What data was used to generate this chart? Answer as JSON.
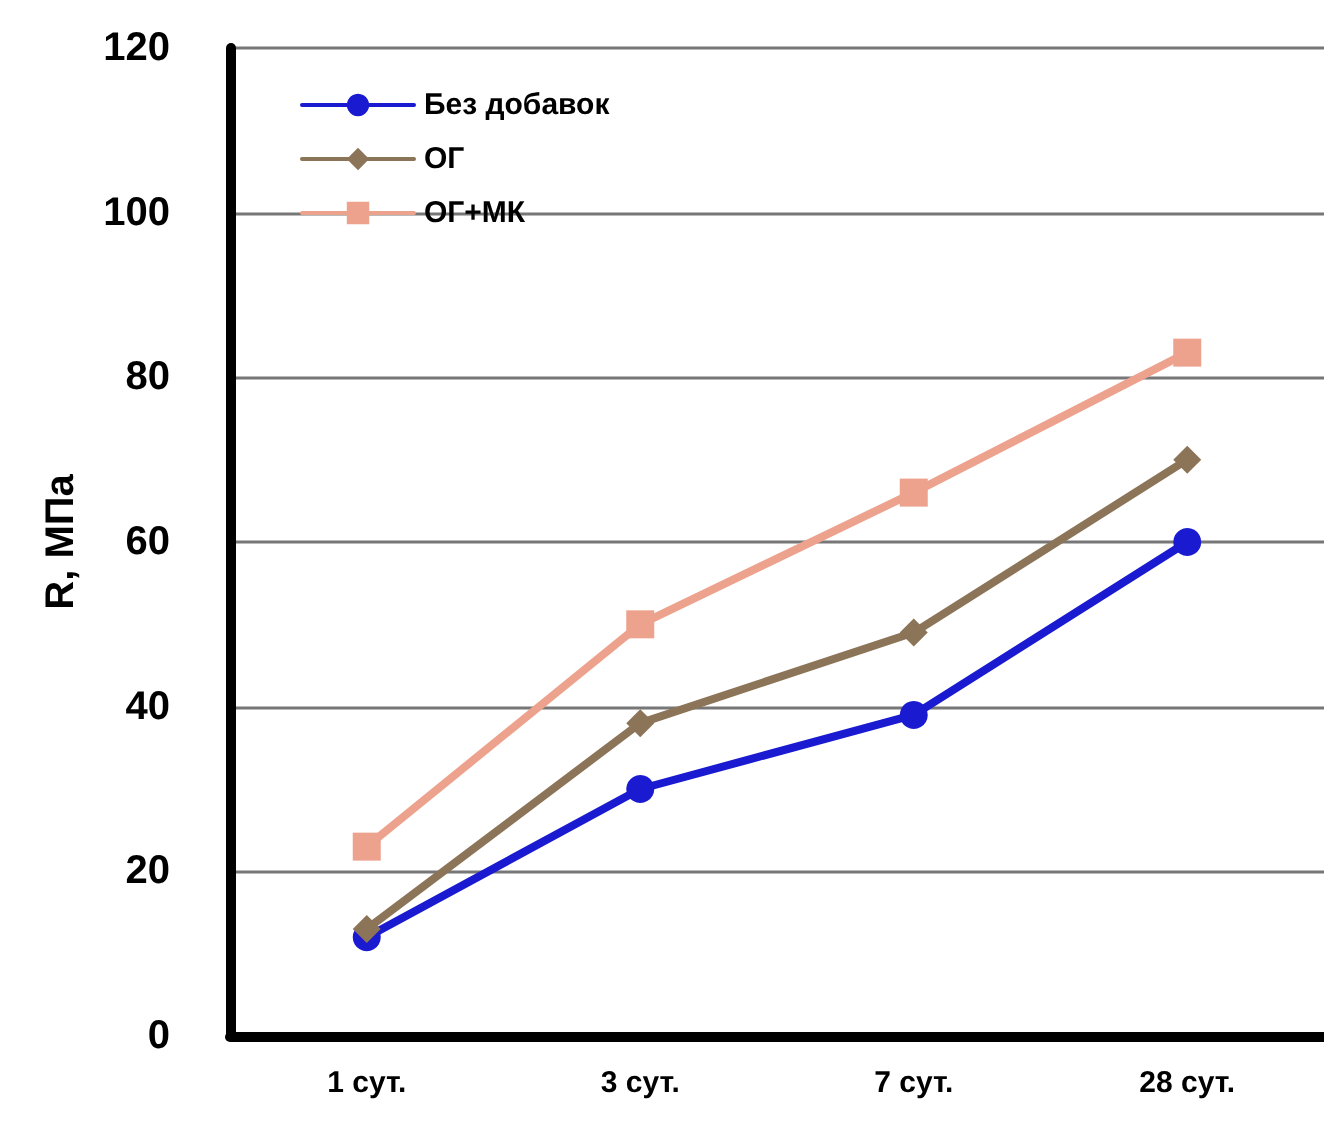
{
  "chart_data": {
    "type": "line",
    "ylabel": "R, МПа",
    "categories": [
      "1 сут.",
      "3 сут.",
      "7 сут.",
      "28 сут."
    ],
    "series": [
      {
        "name": "Без добавок",
        "color": "#1a1ad0",
        "marker": "circle",
        "values": [
          12,
          30,
          39,
          60
        ]
      },
      {
        "name": "ОГ",
        "color": "#8c7458",
        "marker": "diamond",
        "values": [
          13,
          38,
          49,
          70
        ]
      },
      {
        "name": "ОГ+МК",
        "color": "#eda28e",
        "marker": "square",
        "values": [
          23,
          50,
          66,
          83
        ]
      }
    ],
    "ylim": [
      0,
      120
    ],
    "yticks": [
      0,
      20,
      40,
      60,
      80,
      100,
      120
    ],
    "grid": "y",
    "legend": "top left",
    "line_style": "solid"
  }
}
